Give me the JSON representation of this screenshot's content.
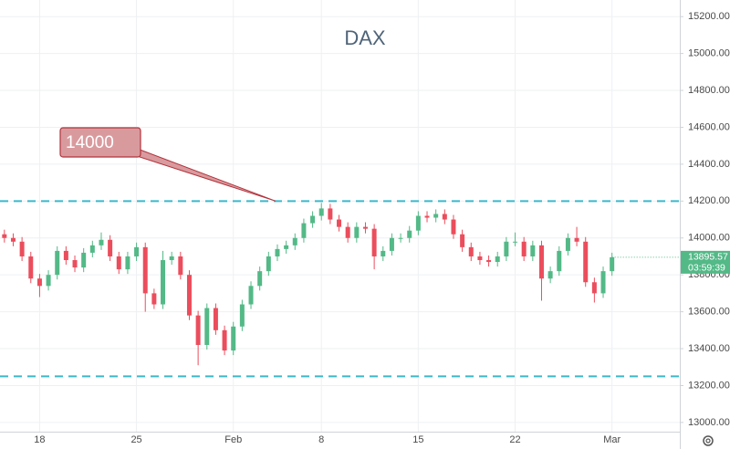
{
  "chart_data": {
    "type": "candlestick",
    "title": "DAX",
    "categories": [
      null,
      null,
      null,
      null,
      "18",
      null,
      null,
      null,
      null,
      null,
      null,
      null,
      null,
      null,
      null,
      "25",
      null,
      null,
      null,
      null,
      null,
      null,
      null,
      null,
      null,
      null,
      "Feb",
      null,
      null,
      null,
      null,
      null,
      null,
      null,
      null,
      null,
      "8",
      null,
      null,
      null,
      null,
      null,
      null,
      null,
      null,
      null,
      null,
      "15",
      null,
      null,
      null,
      null,
      null,
      null,
      null,
      null,
      null,
      null,
      "22",
      null,
      null,
      null,
      null,
      null,
      null,
      null,
      null,
      null,
      null,
      "Mar"
    ],
    "series": [
      {
        "open": [
          14020,
          14000,
          13980,
          13900,
          13780,
          13740,
          13800,
          13930,
          13880,
          13840,
          13920,
          13960,
          13990,
          13900,
          13830,
          13900,
          13950,
          13700,
          13640,
          13880,
          13900,
          13800,
          13580,
          13420,
          13620,
          13500,
          13390,
          13520,
          13640,
          13740,
          13820,
          13900,
          13940,
          13960,
          14000,
          14080,
          14120,
          14160,
          14100,
          14060,
          14000,
          14060,
          14050,
          13900,
          13930,
          14000,
          14000,
          14040,
          14120,
          14110,
          14130,
          14100,
          14020,
          13950,
          13900,
          13880,
          13870,
          13900,
          13980,
          13980,
          13900,
          13960,
          13780,
          13820,
          13930,
          14000,
          13980,
          13760,
          13700,
          13820
        ],
        "high": [
          14045,
          14025,
          14005,
          13925,
          13805,
          13825,
          13955,
          13955,
          13905,
          13945,
          13985,
          14030,
          14015,
          13925,
          13925,
          13975,
          13975,
          13725,
          13930,
          13925,
          13925,
          13825,
          13605,
          13645,
          13645,
          13525,
          13545,
          13665,
          13765,
          13845,
          13925,
          13965,
          13985,
          14025,
          14105,
          14145,
          14190,
          14185,
          14125,
          14085,
          14085,
          14085,
          14075,
          13955,
          14025,
          14025,
          14065,
          14145,
          14145,
          14155,
          14155,
          14125,
          14045,
          13975,
          13925,
          13905,
          13925,
          14005,
          14030,
          14005,
          13985,
          13985,
          13845,
          13955,
          14025,
          14060,
          14005,
          13785,
          13845,
          13920
        ],
        "low": [
          13975,
          13955,
          13875,
          13755,
          13680,
          13715,
          13775,
          13855,
          13815,
          13815,
          13895,
          13935,
          13875,
          13805,
          13805,
          13875,
          13600,
          13615,
          13615,
          13855,
          13775,
          13555,
          13310,
          13395,
          13475,
          13365,
          13365,
          13495,
          13615,
          13715,
          13795,
          13875,
          13915,
          13935,
          13975,
          14055,
          14095,
          14075,
          14035,
          13975,
          13975,
          14025,
          13830,
          13875,
          13905,
          13975,
          13975,
          14015,
          14085,
          14085,
          14075,
          13995,
          13925,
          13875,
          13855,
          13845,
          13845,
          13875,
          13955,
          13875,
          13875,
          13660,
          13755,
          13795,
          13905,
          13955,
          13735,
          13650,
          13675,
          13795
        ],
        "close": [
          14000,
          13980,
          13900,
          13780,
          13740,
          13800,
          13930,
          13880,
          13840,
          13920,
          13960,
          13990,
          13900,
          13830,
          13900,
          13950,
          13700,
          13640,
          13880,
          13900,
          13800,
          13580,
          13420,
          13620,
          13500,
          13390,
          13520,
          13640,
          13740,
          13820,
          13900,
          13940,
          13960,
          14000,
          14080,
          14120,
          14160,
          14100,
          14060,
          14000,
          14060,
          14050,
          13900,
          13930,
          14000,
          14000,
          14040,
          14120,
          14110,
          14130,
          14100,
          14020,
          13950,
          13900,
          13880,
          13870,
          13900,
          13980,
          13980,
          13900,
          13960,
          13780,
          13820,
          13930,
          14000,
          13980,
          13760,
          13700,
          13820,
          13895.57
        ]
      }
    ],
    "up_color": "#53b987",
    "down_color": "#eb4d5c",
    "ylim": [
      12950,
      15290
    ],
    "yticks": [
      {
        "value": 13000,
        "label": "13000.00"
      },
      {
        "value": 13200,
        "label": "13200.00"
      },
      {
        "value": 13400,
        "label": "13400.00"
      },
      {
        "value": 13600,
        "label": "13600.00"
      },
      {
        "value": 13800,
        "label": "13800.00"
      },
      {
        "value": 14000,
        "label": "14000.00"
      },
      {
        "value": 14200,
        "label": "14200.00"
      },
      {
        "value": 14400,
        "label": "14400.00"
      },
      {
        "value": 14600,
        "label": "14600.00"
      },
      {
        "value": 14800,
        "label": "14800.00"
      },
      {
        "value": 15000,
        "label": "15000.00"
      },
      {
        "value": 15200,
        "label": "15200.00"
      }
    ],
    "grid": true,
    "hlines": [
      14200,
      13250
    ],
    "hline_color": "#3bb8c9",
    "annotation": "14000",
    "last_price_label": "13895.57",
    "countdown": "03:59:39"
  }
}
